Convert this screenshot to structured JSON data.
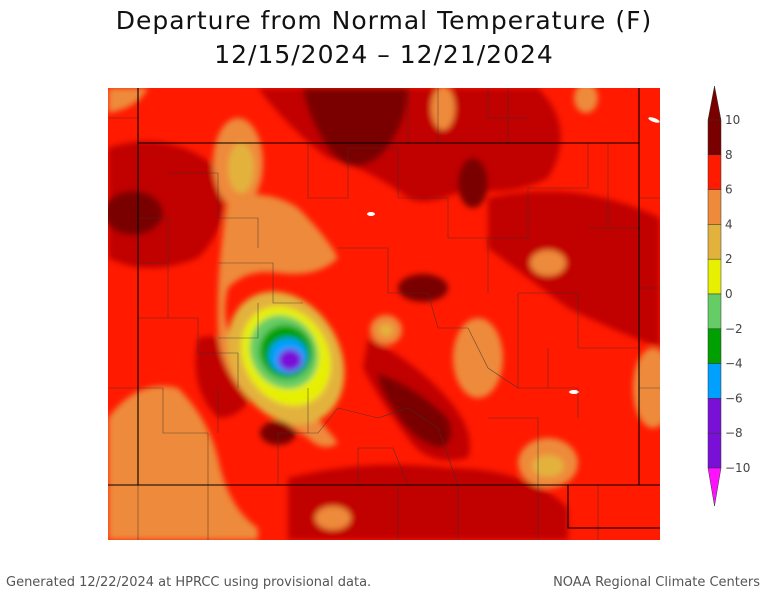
{
  "title": {
    "line1": "Departure from Normal Temperature (F)",
    "line2": "12/15/2024 – 12/21/2024"
  },
  "legend": {
    "levels": [
      {
        "label": "10",
        "value": 10,
        "color": "#7a0000"
      },
      {
        "label": "8",
        "value": 8,
        "color": "#c10000"
      },
      {
        "label": "6",
        "value": 6,
        "color": "#ff1a00"
      },
      {
        "label": "4",
        "value": 4,
        "color": "#ee8a3a"
      },
      {
        "label": "2",
        "value": 2,
        "color": "#e3b23c"
      },
      {
        "label": "0",
        "value": 0,
        "color": "#e7f000"
      },
      {
        "label": "−2",
        "value": -2,
        "color": "#66cc66"
      },
      {
        "label": "−4",
        "value": -4,
        "color": "#00a000"
      },
      {
        "label": "−6",
        "value": -6,
        "color": "#00a0ff"
      },
      {
        "label": "−8",
        "value": -8,
        "color": "#7a10d8"
      },
      {
        "label": "−10",
        "value": -10,
        "color": "#a000ff"
      }
    ],
    "overflow_high_color": "#7a0000",
    "overflow_low_color": "#ff10ff"
  },
  "footer": {
    "left": "Generated 12/22/2024 at HPRCC using provisional data.",
    "right": "NOAA Regional Climate Centers"
  }
}
